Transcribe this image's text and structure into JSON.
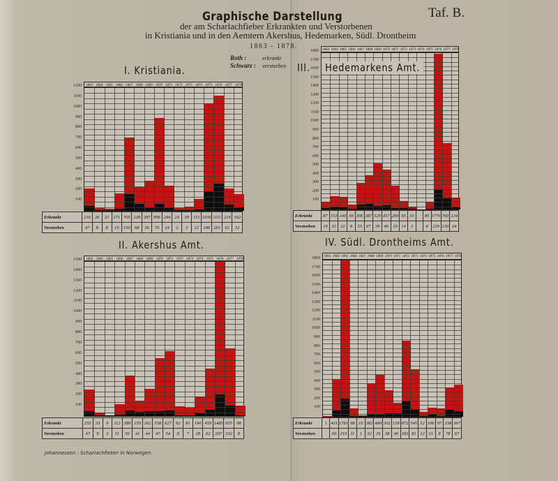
{
  "header": {
    "title": "Graphische Darstellung",
    "subtitle_line1": "der am Scharlachfieber Erkrankten und Verstorbenen",
    "subtitle_line2": "in Kristiania und in den Aemtern Akershus, Hedemarken, Südl. Drontheim",
    "years": "1863 - 1878.",
    "plate": "Taf. B."
  },
  "legend": {
    "red_key": "Roth :",
    "red_value": "erkrankt",
    "black_key": "Schwarz :",
    "black_value": "verstorben"
  },
  "table_labels": {
    "erkrankt": "Erkrankt",
    "verstorben": "Verstorben"
  },
  "footer": "Johannessen : Scharlachfieber in Norwegen.",
  "colors": {
    "erkrankt": "#c4140f",
    "verstorben": "#0e0c0c",
    "paper": "#bdb6a4",
    "grid": "#c8c3b6"
  },
  "chart_data": [
    {
      "type": "bar",
      "title": "I. Kristiania.",
      "categories": [
        "1863",
        "1864",
        "1865",
        "1866",
        "1867",
        "1868",
        "1869",
        "1870",
        "1871",
        "1872",
        "1873",
        "1874",
        "1875",
        "1876",
        "1877",
        "1878"
      ],
      "series": [
        {
          "name": "Erkrankt",
          "color": "#c4140f",
          "values": [
            216,
            26,
            21,
            171,
            705,
            228,
            287,
            896,
            244,
            24,
            39,
            115,
            1036,
            1111,
            214,
            162
          ]
        },
        {
          "name": "Verstorben",
          "color": "#0e0c0c",
          "values": [
            47,
            8,
            8,
            19,
            159,
            68,
            36,
            70,
            24,
            2,
            3,
            12,
            186,
            261,
            62,
            32
          ]
        }
      ],
      "ylim": [
        0,
        1200
      ],
      "yticks": [
        100,
        200,
        300,
        400,
        500,
        600,
        700,
        800,
        900,
        1000,
        1100,
        1200
      ],
      "grid": true
    },
    {
      "type": "bar",
      "title": "II. Akershus Amt.",
      "categories": [
        "1863",
        "1864",
        "1865",
        "1866",
        "1867",
        "1868",
        "1869",
        "1870",
        "1871",
        "1872",
        "1873",
        "1874",
        "1875",
        "1876",
        "1877",
        "1878"
      ],
      "series": [
        {
          "name": "Erkrankt",
          "color": "#c4140f",
          "values": [
            253,
            33,
            9,
            112,
            389,
            150,
            262,
            558,
            627,
            92,
            81,
            190,
            459,
            1485,
            655,
            98
          ]
        },
        {
          "name": "Verstorben",
          "color": "#0e0c0c",
          "values": [
            47,
            9,
            3,
            11,
            56,
            41,
            44,
            47,
            54,
            8,
            7,
            28,
            62,
            207,
            102,
            8
          ]
        }
      ],
      "ylim": [
        0,
        1500
      ],
      "yticks": [
        100,
        200,
        300,
        400,
        500,
        600,
        700,
        800,
        900,
        1000,
        1100,
        1200,
        1300,
        1400,
        1500
      ],
      "grid": true
    },
    {
      "type": "bar",
      "title": "III. Hedemarkens Amt.",
      "categories": [
        "1863",
        "1864",
        "1865",
        "1866",
        "1867",
        "1868",
        "1869",
        "1870",
        "1871",
        "1872",
        "1873",
        "1874",
        "1875",
        "1876",
        "1877",
        "1878"
      ],
      "series": [
        {
          "name": "Erkrankt",
          "color": "#c4140f",
          "values": [
            87,
            153,
            140,
            56,
            306,
            387,
            529,
            457,
            269,
            95,
            33,
            null,
            85,
            1776,
            760,
            134
          ]
        },
        {
          "name": "Verstorben",
          "color": "#0e0c0c",
          "values": [
            19,
            33,
            22,
            8,
            55,
            67,
            39,
            46,
            19,
            14,
            3,
            null,
            8,
            230,
            130,
            24
          ]
        }
      ],
      "ylim": [
        0,
        1800
      ],
      "yticks": [
        100,
        200,
        300,
        400,
        500,
        600,
        700,
        800,
        900,
        1000,
        1100,
        1200,
        1300,
        1400,
        1500,
        1600,
        1700,
        1800
      ],
      "grid": true
    },
    {
      "type": "bar",
      "title": "IV. Südl. Drontheims Amt.",
      "categories": [
        "1863",
        "1864",
        "1865",
        "1866",
        "1867",
        "1868",
        "1869",
        "1870",
        "1871",
        "1872",
        "1873",
        "1874",
        "1875",
        "1876",
        "1877",
        "1878"
      ],
      "series": [
        {
          "name": "Erkrankt",
          "color": "#c4140f",
          "values": [
            1,
            431,
            1781,
            98,
            16,
            382,
            480,
            302,
            159,
            872,
            545,
            52,
            106,
            97,
            338,
            367
          ]
        },
        {
          "name": "Verstorben",
          "color": "#0e0c0c",
          "values": [
            null,
            69,
            210,
            11,
            1,
            32,
            35,
            38,
            40,
            183,
            81,
            12,
            31,
            8,
            78,
            67
          ]
        }
      ],
      "ylim": [
        0,
        1800
      ],
      "yticks": [
        100,
        200,
        300,
        400,
        500,
        600,
        700,
        800,
        900,
        1000,
        1100,
        1200,
        1300,
        1400,
        1500,
        1600,
        1700,
        1800
      ],
      "grid": true
    }
  ]
}
